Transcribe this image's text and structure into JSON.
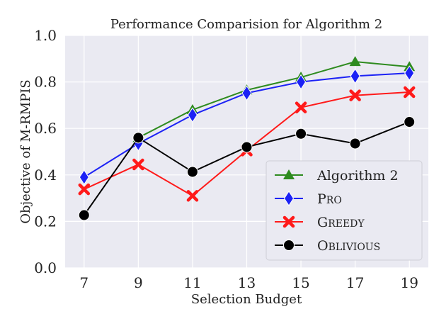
{
  "chart_data": {
    "type": "line",
    "title": "Performance Comparision for Algorithm 2",
    "xlabel": "Selection Budget",
    "ylabel": "Objective of M-RMPIS",
    "x": [
      7,
      9,
      11,
      13,
      15,
      17,
      19
    ],
    "xlim": [
      6.3,
      19.7
    ],
    "ylim": [
      0.0,
      1.0
    ],
    "yticks": [
      0.0,
      0.2,
      0.4,
      0.6,
      0.8,
      1.0
    ],
    "ytick_labels": [
      "0.0",
      "0.2",
      "0.4",
      "0.6",
      "0.8",
      "1.0"
    ],
    "xtick_labels": [
      "7",
      "9",
      "11",
      "13",
      "15",
      "17",
      "19"
    ],
    "grid": true,
    "background": "#EAEAF2",
    "legend_position": "lower-right",
    "series": [
      {
        "name": "Algorithm 2",
        "label": "Algorithm 2",
        "color": "#2e8b1f",
        "marker": "triangle",
        "x": [
          9,
          11,
          13,
          15,
          17,
          19
        ],
        "values": [
          0.56,
          0.68,
          0.765,
          0.82,
          0.887,
          0.865
        ]
      },
      {
        "name": "PRo",
        "label": "PRo",
        "color": "#1c22f5",
        "marker": "diamond",
        "x": [
          7,
          9,
          11,
          13,
          15,
          17,
          19
        ],
        "values": [
          0.39,
          0.535,
          0.658,
          0.752,
          0.8,
          0.825,
          0.838
        ]
      },
      {
        "name": "Greedy",
        "label": "Greedy",
        "color": "#ff1a1a",
        "marker": "x",
        "x": [
          7,
          9,
          11,
          13,
          15,
          17,
          19
        ],
        "values": [
          0.338,
          0.445,
          0.31,
          0.505,
          0.69,
          0.742,
          0.756
        ]
      },
      {
        "name": "Oblivious",
        "label": "Oblivious",
        "color": "#000000",
        "marker": "circle",
        "x": [
          7,
          9,
          11,
          13,
          15,
          17,
          19
        ],
        "values": [
          0.227,
          0.56,
          0.413,
          0.52,
          0.577,
          0.535,
          0.628
        ]
      }
    ]
  }
}
